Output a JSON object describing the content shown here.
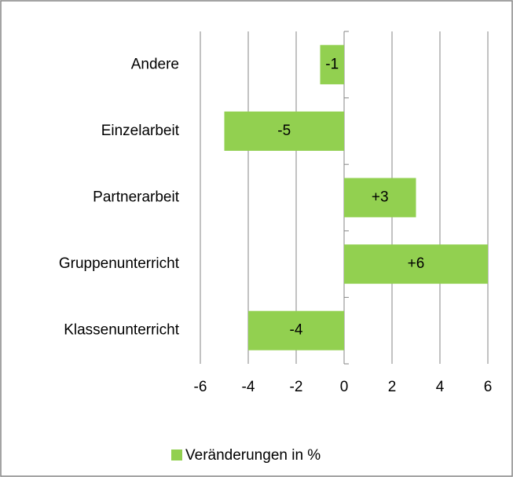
{
  "chart_data": {
    "type": "bar",
    "orientation": "horizontal",
    "categories": [
      "Andere",
      "Einzelarbeit",
      "Partnerarbeit",
      "Gruppenunterricht",
      "Klassenunterricht"
    ],
    "series": [
      {
        "name": "Veränderungen in %",
        "color": "#92d050",
        "values": [
          -1,
          -5,
          3,
          6,
          -4
        ],
        "value_labels": [
          "-1",
          "-5",
          "+3",
          "+6",
          "-4"
        ]
      }
    ],
    "xlim": [
      -6,
      6
    ],
    "xticks": [
      -6,
      -4,
      -2,
      0,
      2,
      4,
      6
    ],
    "grid": true,
    "legend": "bottom"
  }
}
